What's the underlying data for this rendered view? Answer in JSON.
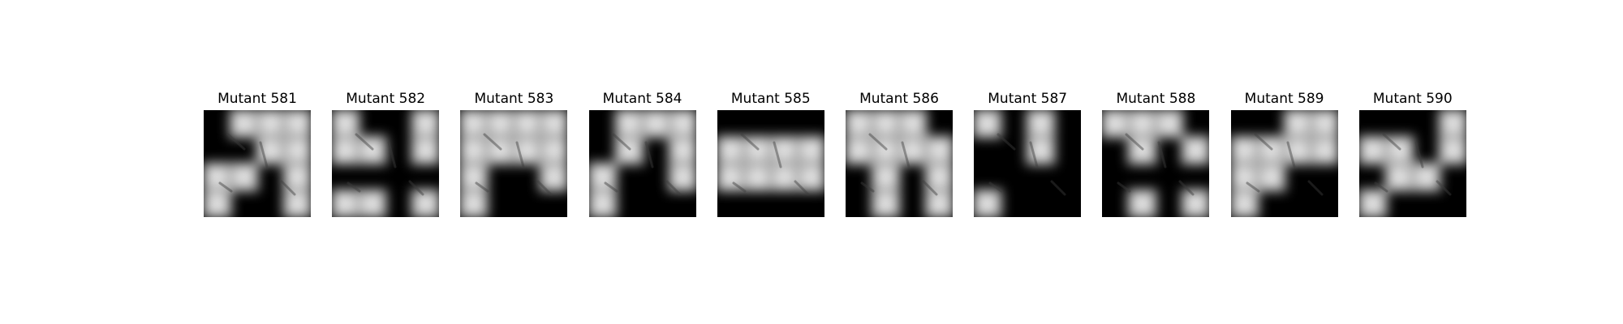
{
  "figure": {
    "panels": [
      {
        "title": "Mutant 581",
        "mask": [
          [
            0,
            1,
            1,
            1
          ],
          [
            0,
            0,
            1,
            1
          ],
          [
            1,
            1,
            0,
            1
          ],
          [
            1,
            0,
            0,
            1
          ]
        ]
      },
      {
        "title": "Mutant 582",
        "mask": [
          [
            1,
            0,
            0,
            1
          ],
          [
            1,
            1,
            0,
            1
          ],
          [
            0,
            0,
            0,
            0
          ],
          [
            1,
            1,
            0,
            1
          ]
        ]
      },
      {
        "title": "Mutant 583",
        "mask": [
          [
            1,
            1,
            1,
            1
          ],
          [
            1,
            1,
            1,
            1
          ],
          [
            1,
            0,
            0,
            1
          ],
          [
            1,
            0,
            0,
            0
          ]
        ]
      },
      {
        "title": "Mutant 584",
        "mask": [
          [
            0,
            1,
            1,
            1
          ],
          [
            0,
            1,
            0,
            1
          ],
          [
            1,
            0,
            0,
            1
          ],
          [
            1,
            0,
            0,
            0
          ]
        ]
      },
      {
        "title": "Mutant 585",
        "mask": [
          [
            0,
            0,
            0,
            0
          ],
          [
            1,
            1,
            1,
            1
          ],
          [
            1,
            1,
            1,
            1
          ],
          [
            0,
            0,
            0,
            0
          ]
        ]
      },
      {
        "title": "Mutant 586",
        "mask": [
          [
            1,
            1,
            1,
            0
          ],
          [
            1,
            1,
            1,
            1
          ],
          [
            0,
            1,
            0,
            1
          ],
          [
            0,
            1,
            0,
            1
          ]
        ]
      },
      {
        "title": "Mutant 587",
        "mask": [
          [
            1,
            0,
            1,
            0
          ],
          [
            0,
            0,
            1,
            0
          ],
          [
            0,
            0,
            0,
            0
          ],
          [
            1,
            0,
            0,
            0
          ]
        ]
      },
      {
        "title": "Mutant 588",
        "mask": [
          [
            1,
            1,
            1,
            0
          ],
          [
            0,
            1,
            0,
            1
          ],
          [
            0,
            0,
            0,
            0
          ],
          [
            0,
            1,
            0,
            1
          ]
        ]
      },
      {
        "title": "Mutant 589",
        "mask": [
          [
            0,
            0,
            1,
            1
          ],
          [
            1,
            1,
            1,
            1
          ],
          [
            1,
            1,
            0,
            0
          ],
          [
            1,
            0,
            0,
            0
          ]
        ]
      },
      {
        "title": "Mutant 590",
        "mask": [
          [
            0,
            0,
            0,
            1
          ],
          [
            1,
            1,
            0,
            1
          ],
          [
            0,
            1,
            1,
            0
          ],
          [
            1,
            0,
            0,
            0
          ]
        ]
      }
    ]
  }
}
